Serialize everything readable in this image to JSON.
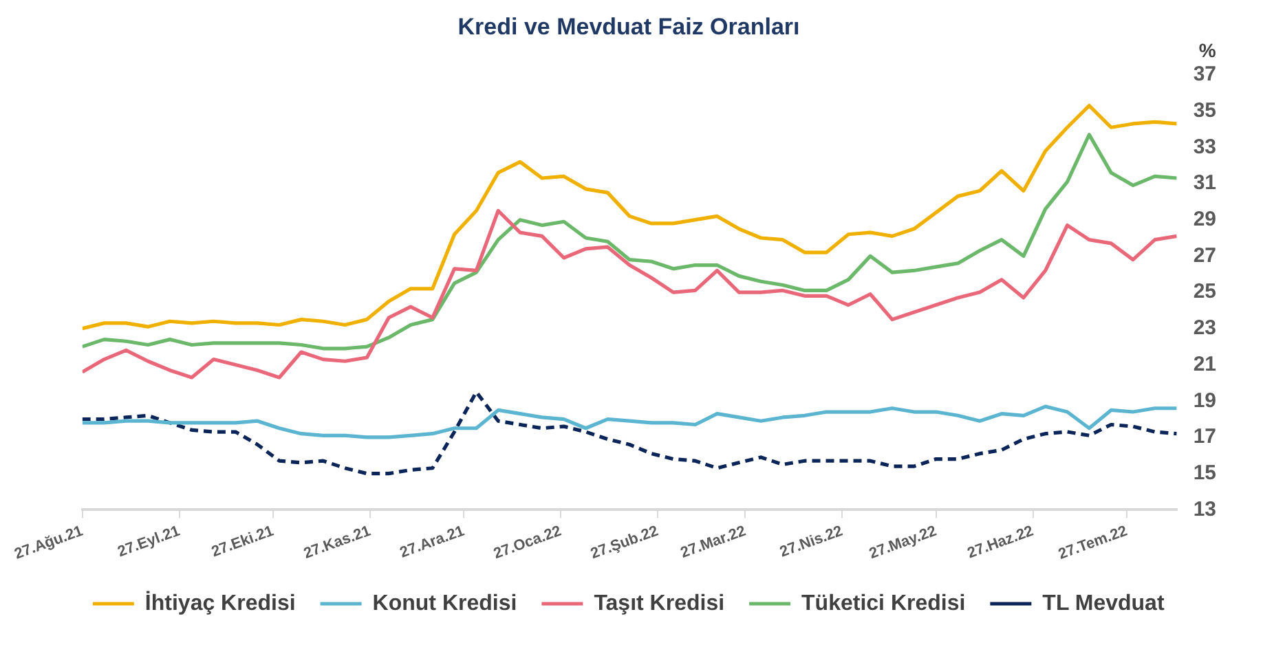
{
  "chart_data": {
    "type": "line",
    "title": "Kredi ve Mevduat Faiz Oranları",
    "ylabel": "%",
    "x": [
      "2021-08-27",
      "2021-09-03",
      "2021-09-10",
      "2021-09-17",
      "2021-09-24",
      "2021-10-01",
      "2021-10-08",
      "2021-10-15",
      "2021-10-22",
      "2021-10-29",
      "2021-11-05",
      "2021-11-12",
      "2021-11-19",
      "2021-11-26",
      "2021-12-03",
      "2021-12-10",
      "2021-12-17",
      "2021-12-24",
      "2021-12-31",
      "2022-01-07",
      "2022-01-14",
      "2022-01-21",
      "2022-01-28",
      "2022-02-04",
      "2022-02-11",
      "2022-02-18",
      "2022-02-25",
      "2022-03-04",
      "2022-03-11",
      "2022-03-18",
      "2022-03-25",
      "2022-04-01",
      "2022-04-08",
      "2022-04-15",
      "2022-04-22",
      "2022-04-29",
      "2022-05-06",
      "2022-05-13",
      "2022-05-20",
      "2022-05-27",
      "2022-06-03",
      "2022-06-10",
      "2022-06-17",
      "2022-06-24",
      "2022-07-01",
      "2022-07-08",
      "2022-07-15",
      "2022-07-22",
      "2022-07-29",
      "2022-08-05",
      "2022-08-12"
    ],
    "series": [
      {
        "name": "İhtiyaç Kredisi",
        "color": "#f0b000",
        "values": [
          23.0,
          23.3,
          23.3,
          23.1,
          23.4,
          23.3,
          23.4,
          23.3,
          23.3,
          23.2,
          23.5,
          23.4,
          23.2,
          23.5,
          24.5,
          25.2,
          25.2,
          28.2,
          29.5,
          31.6,
          32.2,
          31.3,
          31.4,
          30.7,
          30.5,
          29.2,
          28.8,
          28.8,
          29.0,
          29.2,
          28.5,
          28.0,
          27.9,
          27.2,
          27.2,
          28.2,
          28.3,
          28.1,
          28.5,
          29.4,
          30.3,
          30.6,
          31.7,
          30.6,
          32.8,
          34.1,
          35.3,
          34.1,
          34.3,
          34.4,
          34.3
        ]
      },
      {
        "name": "Konut Kredisi",
        "color": "#5bb5d0",
        "values": [
          17.8,
          17.8,
          17.9,
          17.9,
          17.8,
          17.8,
          17.8,
          17.8,
          17.9,
          17.5,
          17.2,
          17.1,
          17.1,
          17.0,
          17.0,
          17.1,
          17.2,
          17.5,
          17.5,
          18.5,
          18.3,
          18.1,
          18.0,
          17.5,
          18.0,
          17.9,
          17.8,
          17.8,
          17.7,
          18.3,
          18.1,
          17.9,
          18.1,
          18.2,
          18.4,
          18.4,
          18.4,
          18.6,
          18.4,
          18.4,
          18.2,
          17.9,
          18.3,
          18.2,
          18.7,
          18.4,
          17.5,
          18.5,
          18.4,
          18.6,
          18.6
        ]
      },
      {
        "name": "Taşıt Kredisi",
        "color": "#e8687a",
        "values": [
          20.6,
          21.3,
          21.8,
          21.2,
          20.7,
          20.3,
          21.3,
          21.0,
          20.7,
          20.3,
          21.7,
          21.3,
          21.2,
          21.4,
          23.6,
          24.2,
          23.6,
          26.3,
          26.2,
          29.5,
          28.3,
          28.1,
          26.9,
          27.4,
          27.5,
          26.5,
          25.8,
          25.0,
          25.1,
          26.2,
          25.0,
          25.0,
          25.1,
          24.8,
          24.8,
          24.3,
          24.9,
          23.5,
          23.9,
          24.3,
          24.7,
          25.0,
          25.7,
          24.7,
          26.2,
          28.7,
          27.9,
          27.7,
          26.8,
          27.9,
          28.1
        ]
      },
      {
        "name": "Tüketici Kredisi",
        "color": "#6bb86b",
        "values": [
          22.0,
          22.4,
          22.3,
          22.1,
          22.4,
          22.1,
          22.2,
          22.2,
          22.2,
          22.2,
          22.1,
          21.9,
          21.9,
          22.0,
          22.5,
          23.2,
          23.5,
          25.5,
          26.1,
          27.9,
          29.0,
          28.7,
          28.9,
          28.0,
          27.8,
          26.8,
          26.7,
          26.3,
          26.5,
          26.5,
          25.9,
          25.6,
          25.4,
          25.1,
          25.1,
          25.7,
          27.0,
          26.1,
          26.2,
          26.4,
          26.6,
          27.3,
          27.9,
          27.0,
          29.6,
          31.1,
          33.7,
          31.6,
          30.9,
          31.4,
          31.3
        ]
      },
      {
        "name": "TL Mevduat",
        "color": "#0b2559",
        "line_style": "dashed",
        "values": [
          18.0,
          18.0,
          18.1,
          18.2,
          17.8,
          17.4,
          17.3,
          17.3,
          16.6,
          15.7,
          15.6,
          15.7,
          15.3,
          15.0,
          15.0,
          15.2,
          15.3,
          17.3,
          19.5,
          17.9,
          17.7,
          17.5,
          17.6,
          17.3,
          16.9,
          16.6,
          16.1,
          15.8,
          15.7,
          15.3,
          15.6,
          15.9,
          15.5,
          15.7,
          15.7,
          15.7,
          15.7,
          15.4,
          15.4,
          15.8,
          15.8,
          16.1,
          16.3,
          16.9,
          17.2,
          17.3,
          17.1,
          17.7,
          17.6,
          17.3,
          17.2
        ]
      }
    ],
    "xlim": [
      "2021-08-27",
      "2022-08-12"
    ],
    "xticks": [
      {
        "value": "2021-08-27",
        "label": "27.Ağu.21"
      },
      {
        "value": "2021-09-27",
        "label": "27.Eyl.21"
      },
      {
        "value": "2021-10-27",
        "label": "27.Eki.21"
      },
      {
        "value": "2021-11-27",
        "label": "27.Kas.21"
      },
      {
        "value": "2021-12-27",
        "label": "27.Ara.21"
      },
      {
        "value": "2022-01-27",
        "label": "27.Oca.22"
      },
      {
        "value": "2022-02-27",
        "label": "27.Şub.22"
      },
      {
        "value": "2022-03-27",
        "label": "27.Mar.22"
      },
      {
        "value": "2022-04-27",
        "label": "27.Nis.22"
      },
      {
        "value": "2022-05-27",
        "label": "27.May.22"
      },
      {
        "value": "2022-06-27",
        "label": "27.Haz.22"
      },
      {
        "value": "2022-07-27",
        "label": "27.Tem.22"
      }
    ],
    "ylim": [
      13,
      37
    ],
    "yticks": [
      13,
      15,
      17,
      19,
      21,
      23,
      25,
      27,
      29,
      31,
      33,
      35,
      37
    ],
    "grid": false,
    "legend": "bottom",
    "marker": "none"
  }
}
